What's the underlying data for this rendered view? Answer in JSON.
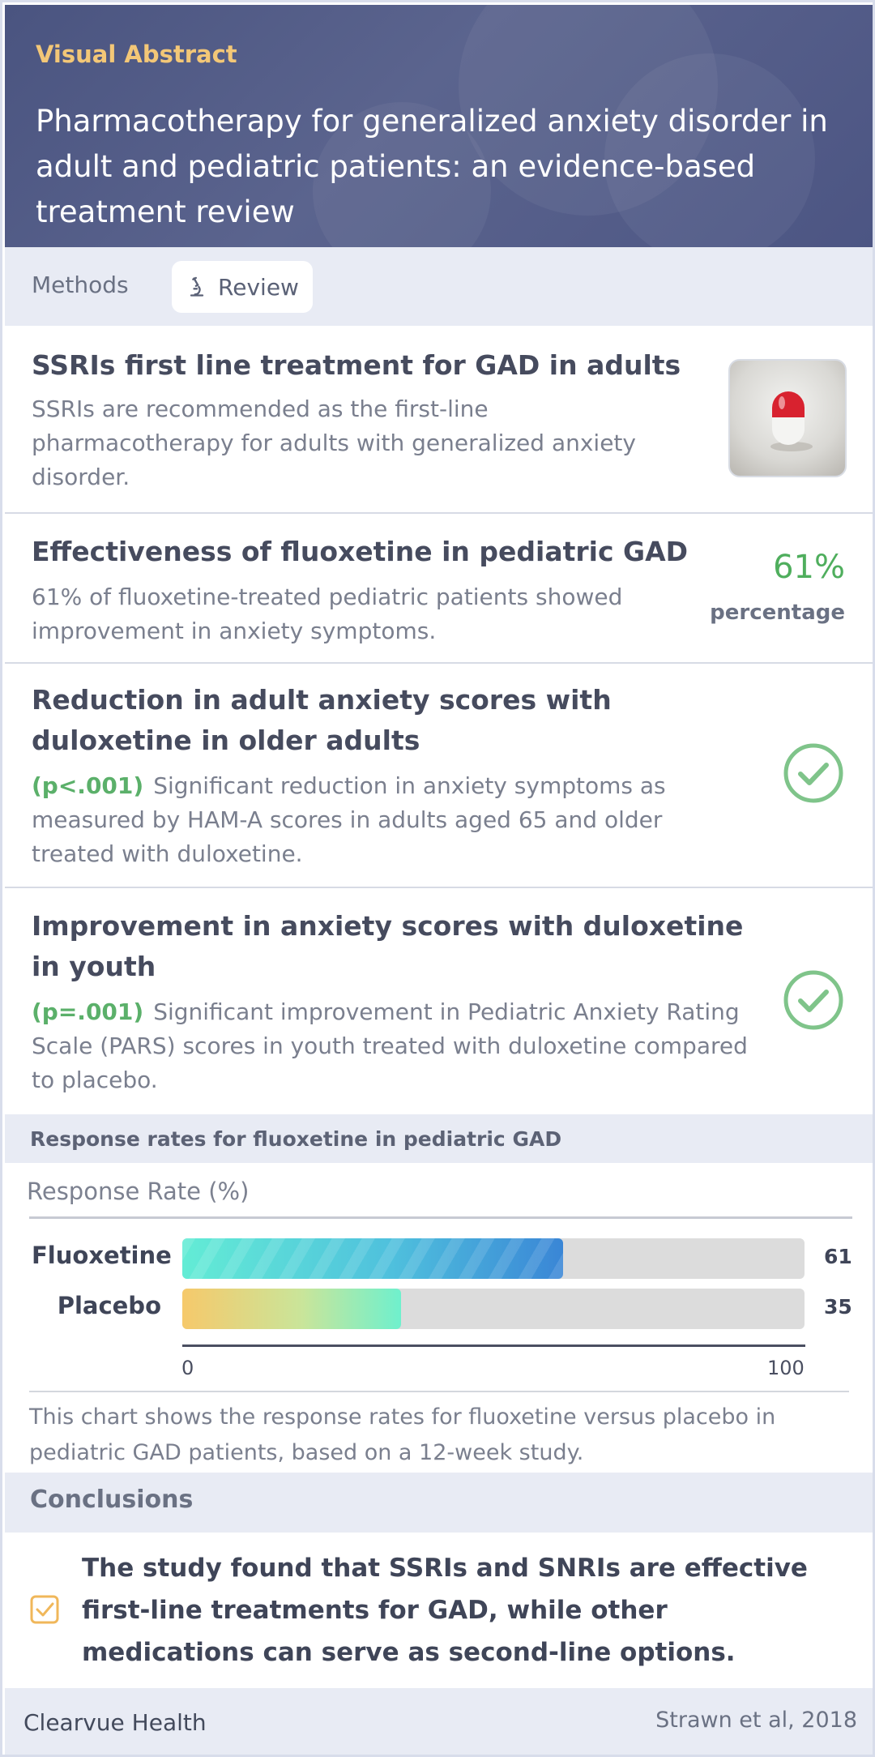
{
  "header": {
    "kicker": "Visual Abstract",
    "title": "Pharmacotherapy for generalized anxiety disorder in adult and pediatric patients: an evidence-based treatment review"
  },
  "methods": {
    "label": "Methods",
    "chip_label": "Review",
    "chip_icon": "microscope-icon"
  },
  "findings": [
    {
      "title": "SSRIs first line treatment for GAD in adults",
      "body": "SSRIs are recommended as the first-line pharmacotherapy for adults with generalized anxiety disorder.",
      "visual": "pill-image"
    },
    {
      "title": "Effectiveness of fluoxetine in pediatric GAD",
      "body": "61% of fluoxetine-treated pediatric patients showed improvement in anxiety symptoms.",
      "stat_value": "61%",
      "stat_label": "percentage"
    },
    {
      "title": "Reduction in adult anxiety scores with duloxetine in older adults",
      "pvalue": "(p<.001)",
      "body": "Significant reduction in anxiety symptoms as measured by HAM-A scores in adults aged 65 and older treated with duloxetine.",
      "icon": "check-circle-icon"
    },
    {
      "title": "Improvement in anxiety scores with duloxetine in youth",
      "pvalue": "(p=.001)",
      "body": "Significant improvement in Pediatric Anxiety Rating Scale (PARS) scores in youth treated with duloxetine compared to placebo.",
      "icon": "check-circle-icon"
    }
  ],
  "chart_section": {
    "heading": "Response rates for fluoxetine in pediatric GAD",
    "caption": "This chart shows the response rates for fluoxetine versus placebo in pediatric GAD patients, based on a 12-week study."
  },
  "chart_data": {
    "type": "bar",
    "orientation": "horizontal",
    "title": "Response Rate (%)",
    "categories": [
      "Fluoxetine",
      "Placebo"
    ],
    "values": [
      61,
      35
    ],
    "value_labels": [
      "61",
      "35"
    ],
    "xlim": [
      0,
      100
    ],
    "tick_labels": [
      "0",
      "100"
    ],
    "grid": false
  },
  "conclusions": {
    "heading": "Conclusions",
    "text": "The study found that SSRIs and SNRIs are effective first-line treatments for GAD, while other medications can serve as second-line options.",
    "icon": "checkbox-icon"
  },
  "footer": {
    "brand": "Clearvue Health",
    "citation": "Strawn et al, 2018"
  },
  "colors": {
    "header_bg": "#4f5885",
    "accent_gold": "#f3c777",
    "stat_green": "#4fae5d",
    "section_bg": "#e8ebf4"
  }
}
